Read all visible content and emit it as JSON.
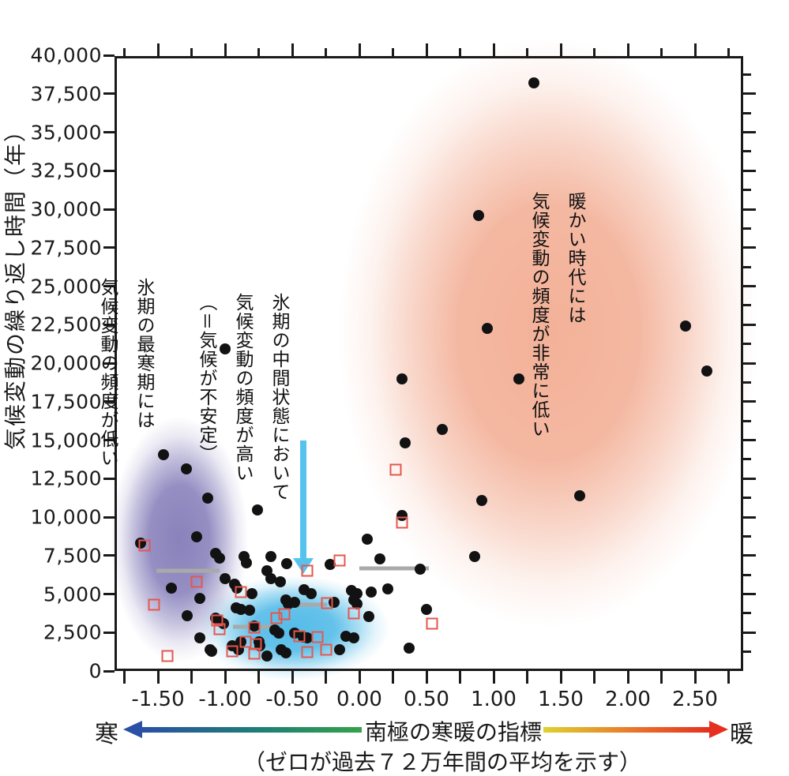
{
  "figure": {
    "y_axis": {
      "title": "気候変動の繰り返し時間（年）",
      "tick_labels": [
        "40,000",
        "37,500",
        "35,000",
        "32,500",
        "30,000",
        "27,500",
        "25,000",
        "22,500",
        "20,000",
        "17,500",
        "15,000",
        "12,500",
        "10,000",
        "7,500",
        "5,000",
        "2,500",
        "0"
      ],
      "tick_step": 2500,
      "max": 40000,
      "min": 0
    },
    "x_axis": {
      "tick_labels": [
        "-1.50",
        "-1.00",
        "-0.50",
        "0.00",
        "0.50",
        "1.00",
        "1.50",
        "2.00",
        "2.50"
      ],
      "tick_values": [
        -1.5,
        -1.0,
        -0.5,
        0.0,
        0.5,
        1.0,
        1.5,
        2.0,
        2.5
      ],
      "minor_step": 0.25,
      "minor_min": -1.75,
      "minor_max": 2.75
    },
    "legend": {
      "cold_label": "寒",
      "warm_label": "暖",
      "axis_label": "南極の寒暖の指標",
      "sub_label": "（ゼロが過去７２万年間の平均を示す）"
    },
    "annotations": {
      "coldest": "氷期の最寒期には\n気候変動の頻度が低い",
      "intermediate": "氷期の中間状態において\n気候変動の頻度が高い\n（＝気候が不安定）",
      "warm": "暖かい時代には\n気候変動の頻度が非常に低い"
    },
    "colors": {
      "black_point": "#121212",
      "red_square": "#e4574e",
      "gray_segment": "#a9a9a9",
      "cyan_arrow": "#56c3ef",
      "purple_region": "#6c63ab",
      "blue_region": "#2aabe2",
      "pink_region": "#f09d7e",
      "cold_arrow_start": "#2b50a5",
      "cold_arrow_end": "#36a14b",
      "warm_arrow_start": "#ded32f",
      "warm_arrow_end": "#e5301f"
    }
  },
  "chart_data": {
    "type": "scatter",
    "xlabel": "南極の寒暖の指標",
    "ylabel": "気候変動の繰り返し時間（年）",
    "xlim": [
      -1.82,
      2.86
    ],
    "ylim": [
      0,
      40000
    ],
    "grid": false,
    "series": [
      {
        "name": "climate-change-intervals",
        "marker": "filled-circle",
        "color": "#121212",
        "points": [
          [
            1.3,
            38200
          ],
          [
            0.89,
            29600
          ],
          [
            0.95,
            22250
          ],
          [
            2.43,
            22400
          ],
          [
            2.59,
            19500
          ],
          [
            0.32,
            19000
          ],
          [
            1.19,
            19000
          ],
          [
            -1.0,
            20900
          ],
          [
            0.62,
            15700
          ],
          [
            0.34,
            14800
          ],
          [
            0.91,
            11100
          ],
          [
            1.64,
            11400
          ],
          [
            0.32,
            10100
          ],
          [
            0.06,
            8550
          ],
          [
            -0.76,
            10450
          ],
          [
            -1.46,
            14050
          ],
          [
            -1.29,
            13150
          ],
          [
            -1.13,
            11250
          ],
          [
            -1.63,
            8300
          ],
          [
            -1.21,
            8700
          ],
          [
            -1.07,
            7650
          ],
          [
            -1.04,
            7350
          ],
          [
            -0.86,
            7450
          ],
          [
            -0.84,
            7050
          ],
          [
            -0.66,
            7450
          ],
          [
            -0.54,
            6950
          ],
          [
            -0.69,
            6500
          ],
          [
            -0.66,
            6000
          ],
          [
            -1.0,
            6000
          ],
          [
            -0.59,
            5800
          ],
          [
            -0.93,
            5650
          ],
          [
            -0.91,
            5400
          ],
          [
            -1.4,
            5400
          ],
          [
            -0.8,
            5050
          ],
          [
            -1.19,
            4700
          ],
          [
            -0.55,
            4600
          ],
          [
            -0.53,
            4350
          ],
          [
            -0.48,
            4450
          ],
          [
            -0.41,
            5300
          ],
          [
            -0.36,
            5050
          ],
          [
            -0.22,
            6900
          ],
          [
            -0.19,
            4450
          ],
          [
            -1.28,
            3600
          ],
          [
            -0.92,
            4100
          ],
          [
            -0.88,
            4000
          ],
          [
            -0.82,
            3950
          ],
          [
            -1.07,
            3450
          ],
          [
            -1.04,
            3250
          ],
          [
            -1.01,
            3100
          ],
          [
            -1.19,
            2150
          ],
          [
            -1.11,
            1400
          ],
          [
            -0.95,
            1650
          ],
          [
            -0.88,
            1900
          ],
          [
            -0.78,
            2900
          ],
          [
            -0.75,
            1900
          ],
          [
            -0.74,
            1650
          ],
          [
            -0.69,
            950
          ],
          [
            -0.63,
            2650
          ],
          [
            -0.6,
            2450
          ],
          [
            -0.58,
            1400
          ],
          [
            -0.55,
            1200
          ],
          [
            -0.48,
            2450
          ],
          [
            -0.42,
            2200
          ],
          [
            -0.39,
            2150
          ],
          [
            0.15,
            7300
          ],
          [
            0.86,
            7450
          ],
          [
            0.45,
            6600
          ],
          [
            0.09,
            5150
          ],
          [
            0.21,
            5350
          ],
          [
            -0.06,
            5250
          ],
          [
            -0.02,
            5050
          ],
          [
            -0.04,
            4600
          ],
          [
            -0.02,
            4350
          ],
          [
            0.07,
            3550
          ],
          [
            0.5,
            4000
          ],
          [
            0.37,
            1500
          ],
          [
            -0.1,
            2250
          ],
          [
            -0.04,
            2150
          ],
          [
            -0.15,
            1400
          ],
          [
            -0.9,
            1400
          ],
          [
            -1.1,
            1300
          ]
        ]
      },
      {
        "name": "secondary-intervals",
        "marker": "open-square",
        "color": "#e4574e",
        "points": [
          [
            -1.6,
            8150
          ],
          [
            0.27,
            13100
          ],
          [
            0.32,
            9650
          ],
          [
            -0.15,
            7200
          ],
          [
            -1.21,
            5800
          ],
          [
            -1.53,
            4300
          ],
          [
            -0.88,
            5150
          ],
          [
            -1.06,
            3300
          ],
          [
            -1.04,
            2700
          ],
          [
            -1.43,
            950
          ],
          [
            -0.78,
            2800
          ],
          [
            -0.85,
            1900
          ],
          [
            -0.77,
            1750
          ],
          [
            -0.95,
            1300
          ],
          [
            -0.78,
            1150
          ],
          [
            -0.62,
            3450
          ],
          [
            -0.56,
            3700
          ],
          [
            -0.39,
            6500
          ],
          [
            -0.24,
            4400
          ],
          [
            -0.45,
            2250
          ],
          [
            -0.31,
            2200
          ],
          [
            -0.39,
            1250
          ],
          [
            -0.25,
            1400
          ],
          [
            -0.04,
            3750
          ],
          [
            0.54,
            3100
          ]
        ]
      }
    ],
    "mean_segments": [
      {
        "x1": -1.51,
        "x2": -1.04,
        "y": 6500
      },
      {
        "x1": 0.0,
        "x2": 0.52,
        "y": 6650
      },
      {
        "x1": -0.48,
        "x2": -0.24,
        "y": 4300
      },
      {
        "x1": -0.94,
        "x2": -0.62,
        "y": 2870
      }
    ],
    "highlight_regions": [
      {
        "name": "glacial-coldest",
        "color": "#6c63ab",
        "cx": -1.34,
        "cy": 8550,
        "rx": 0.56,
        "ry": 8700
      },
      {
        "name": "glacial-intermediate",
        "color": "#2aabe2",
        "cx": -0.49,
        "cy": 2800,
        "rx": 0.78,
        "ry": 3700
      },
      {
        "name": "warm-period",
        "color": "#f09d7e",
        "cx": 1.41,
        "cy": 22000,
        "rx": 1.7,
        "ry": 20800
      }
    ],
    "pointer_arrow": {
      "x": -0.42,
      "y_from": 15000,
      "y_to": 6500
    }
  }
}
